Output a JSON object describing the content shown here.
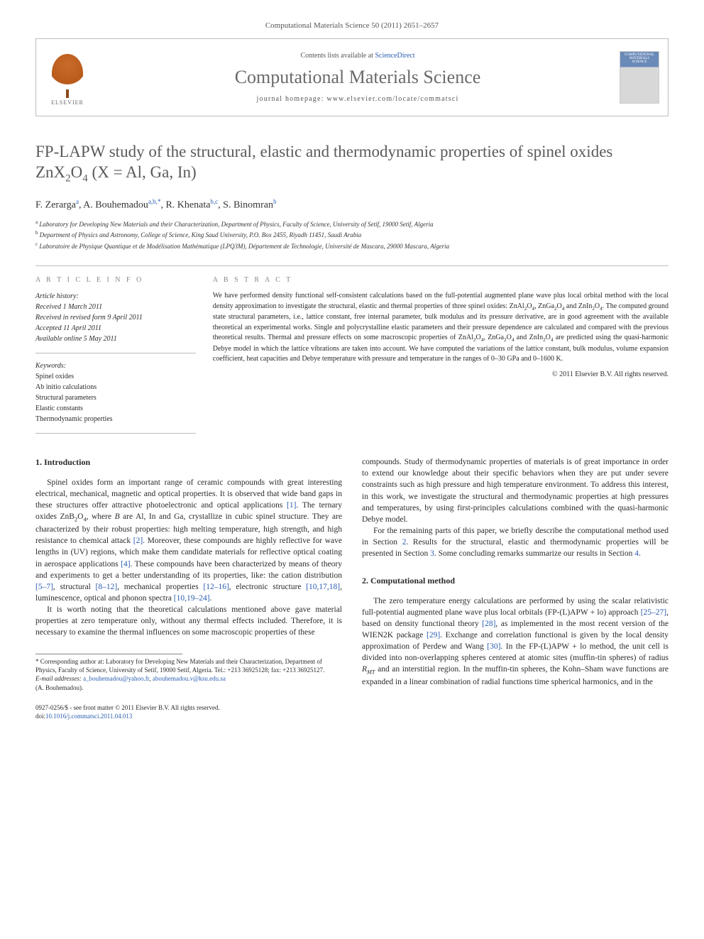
{
  "journal_ref": "Computational Materials Science 50 (2011) 2651–2657",
  "header": {
    "contents_prefix": "Contents lists available at ",
    "contents_link": "ScienceDirect",
    "journal_name": "Computational Materials Science",
    "homepage_prefix": "journal homepage: ",
    "homepage_url": "www.elsevier.com/locate/commatsci",
    "publisher_label": "ELSEVIER",
    "cover_text": "COMPUTATIONAL MATERIALS SCIENCE"
  },
  "title_html": "FP-LAPW study of the structural, elastic and thermodynamic properties of spinel oxides ZnX<sub>2</sub>O<sub>4</sub> (X = Al, Ga, In)",
  "authors_html": "F. Zerarga<span class=\"sup\"><a href=\"#\">a</a></span>, A. Bouhemadou<span class=\"sup\"><a href=\"#\">a,b,</a></span><span class=\"sup\">*</span>, R. Khenata<span class=\"sup\"><a href=\"#\">b,c</a></span>, S. Binomran<span class=\"sup\"><a href=\"#\">b</a></span>",
  "affiliations": [
    "Laboratory for Developing New Materials and their Characterization, Department of Physics, Faculty of Science, University of Setif, 19000 Setif, Algeria",
    "Department of Physics and Astronomy, College of Science, King Saud University, P.O. Box 2455, Riyadh 11451, Saudi Arabia",
    "Laboratoire de Physique Quantique et de Modélisation Mathématique (LPQ3M), Département de Technologie, Université de Mascara, 29000 Mascara, Algeria"
  ],
  "aff_labels": [
    "a",
    "b",
    "c"
  ],
  "article_info_heading": "A R T I C L E   I N F O",
  "history": {
    "head": "Article history:",
    "received": "Received 1 March 2011",
    "revised": "Received in revised form 9 April 2011",
    "accepted": "Accepted 11 April 2011",
    "online": "Available online 5 May 2011"
  },
  "keywords": {
    "head": "Keywords:",
    "items": [
      "Spinel oxides",
      "Ab initio calculations",
      "Structural parameters",
      "Elastic constants",
      "Thermodynamic properties"
    ]
  },
  "abstract_heading": "A B S T R A C T",
  "abstract_html": "We have performed density functional self-consistent calculations based on the full-potential augmented plane wave plus local orbital method with the local density approximation to investigate the structural, elastic and thermal properties of three spinel oxides: ZnAl<sub>2</sub>O<sub>4</sub>, ZnGa<sub>2</sub>O<sub>4</sub> and ZnIn<sub>2</sub>O<sub>4</sub>. The computed ground state structural parameters, i.e., lattice constant, free internal parameter, bulk modulus and its pressure derivative, are in good agreement with the available theoretical an experimental works. Single and polycrystalline elastic parameters and their pressure dependence are calculated and compared with the previous theoretical results. Thermal and pressure effects on some macroscopic properties of ZnAl<sub>2</sub>O<sub>4</sub>, ZnGa<sub>2</sub>O<sub>4</sub> and ZnIn<sub>2</sub>O<sub>4</sub> are predicted using the quasi-harmonic Debye model in which the lattice vibrations are taken into account. We have computed the variations of the lattice constant, bulk modulus, volume expansion coefficient, heat capacities and Debye temperature with pressure and temperature in the ranges of 0–30 GPa and 0–1600 K.",
  "copyright_abs": "© 2011 Elsevier B.V. All rights reserved.",
  "sections": {
    "intro_head": "1. Introduction",
    "intro_p1_html": "Spinel oxides form an important range of ceramic compounds with great interesting electrical, mechanical, magnetic and optical properties. It is observed that wide band gaps in these structures offer attractive photoelectronic and optical applications <a href=\"#\">[1]</a>. The ternary oxides ZnB<sub>2</sub>O<sub>4</sub>, where <i>B</i> are Al, In and Ga, crystallize in cubic spinel structure. They are characterized by their robust properties: high melting temperature, high strength, and high resistance to chemical attack <a href=\"#\">[2]</a>. Moreover, these compounds are highly reflective for wave lengths in (UV) regions, which make them candidate materials for reflective optical coating in aerospace applications <a href=\"#\">[4]</a>. These compounds have been characterized by means of theory and experiments to get a better understanding of its properties, like: the cation distribution <a href=\"#\">[5–7]</a>, structural <a href=\"#\">[8–12]</a>, mechanical properties <a href=\"#\">[12–16]</a>, electronic structure <a href=\"#\">[10,17,18]</a>, luminescence, optical and phonon spectra <a href=\"#\">[10,19–24]</a>.",
    "intro_p2_html": "It is worth noting that the theoretical calculations mentioned above gave material properties at zero temperature only, without any thermal effects included. Therefore, it is necessary to examine the thermal influences on some macroscopic properties of these",
    "intro_p2b_html": "compounds. Study of thermodynamic properties of materials is of great importance in order to extend our knowledge about their specific behaviors when they are put under severe constraints such as high pressure and high temperature environment. To address this interest, in this work, we investigate the structural and thermodynamic properties at high pressures and temperatures, by using first-principles calculations combined with the quasi-harmonic Debye model.",
    "intro_p3_html": "For the remaining parts of this paper, we briefly describe the computational method used in Section <a href=\"#\">2</a>. Results for the structural, elastic and thermodynamic properties will be presented in Section <a href=\"#\">3</a>. Some concluding remarks summarize our results in Section <a href=\"#\">4</a>.",
    "method_head": "2. Computational method",
    "method_p1_html": "The zero temperature energy calculations are performed by using the scalar relativistic full-potential augmented plane wave plus local orbitals (FP-(L)APW + lo) approach <a href=\"#\">[25–27]</a>, based on density functional theory <a href=\"#\">[28]</a>, as implemented in the most recent version of the WIEN2K package <a href=\"#\">[29]</a>. Exchange and correlation functional is given by the local density approximation of Perdew and Wang <a href=\"#\">[30]</a>. In the FP-(L)APW + lo method, the unit cell is divided into non-overlapping spheres centered at atomic sites (muffin-tin spheres) of radius <i>R<sub>MT</sub></i> and an interstitial region. In the muffin-tin spheres, the Kohn–Sham wave functions are expanded in a linear combination of radial functions time spherical harmonics, and in the"
  },
  "footnotes": {
    "corr_html": "* Corresponding author at: Laboratory for Developing New Materials and their Characterization, Department of Physics, Faculty of Science, University of Setif, 19000 Setif, Algeria. Tel.: +213 36925128; fax: +213 36925127.",
    "email_label": "E-mail addresses:",
    "emails_html": "<a href=\"#\">a_bouhemadou@yahoo.fr</a>, <a href=\"#\">abouhemadou.v@ksu.edu.sa</a>",
    "email_author": "(A. Bouhemadou)."
  },
  "pubfooter": {
    "line1": "0927-0256/$ - see front matter © 2011 Elsevier B.V. All rights reserved.",
    "doi_label": "doi:",
    "doi": "10.1016/j.commatsci.2011.04.013"
  },
  "colors": {
    "link": "#2a5db0",
    "text": "#2a2a2a",
    "heading_gray": "#6a6a6a",
    "muted": "#888888",
    "border": "#bbbbbb"
  },
  "typography": {
    "body_fontsize_pt": 11.5,
    "title_fontsize_pt": 23,
    "journal_name_fontsize_pt": 26,
    "abstract_fontsize_pt": 10,
    "footnote_fontsize_pt": 9
  }
}
